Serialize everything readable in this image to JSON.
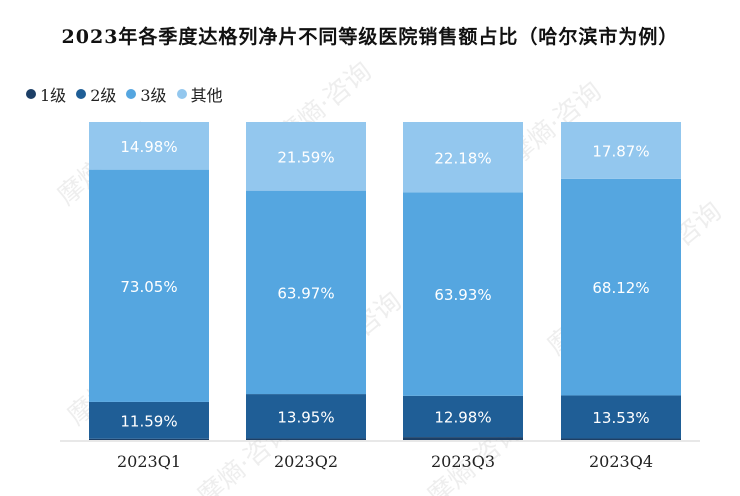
{
  "chart_data": {
    "type": "bar",
    "stacked": true,
    "percent": true,
    "title": "2023年各季度达格列净片不同等级医院销售额占比（哈尔滨市为例）",
    "categories": [
      "2023Q1",
      "2023Q2",
      "2023Q3",
      "2023Q4"
    ],
    "series": [
      {
        "name": "1级",
        "color": "#1c3f66",
        "values": [
          0.38,
          0.49,
          0.91,
          0.48
        ]
      },
      {
        "name": "2级",
        "color": "#1f5e96",
        "values": [
          11.59,
          13.95,
          12.98,
          13.53
        ]
      },
      {
        "name": "3级",
        "color": "#55a6e0",
        "values": [
          73.05,
          63.97,
          63.93,
          68.12
        ]
      },
      {
        "name": "其他",
        "color": "#93c7ee",
        "values": [
          14.98,
          21.59,
          22.18,
          17.87
        ]
      }
    ],
    "labels": {
      "2级": [
        "11.59%",
        "13.95%",
        "12.98%",
        "13.53%"
      ],
      "3级": [
        "73.05%",
        "63.97%",
        "63.93%",
        "68.12%"
      ],
      "其他": [
        "14.98%",
        "21.59%",
        "22.18%",
        "17.87%"
      ]
    },
    "ylim": [
      0,
      100
    ],
    "legend_position": "top-left",
    "grid": false
  },
  "watermark": "摩熵·咨询"
}
